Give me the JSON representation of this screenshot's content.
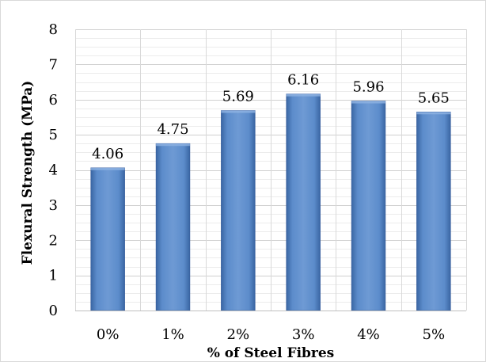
{
  "chart_data": {
    "type": "bar",
    "title": "",
    "xlabel": "% of Steel Fibres",
    "ylabel": "Flexural Strength (MPa)",
    "categories": [
      "0%",
      "1%",
      "2%",
      "3%",
      "4%",
      "5%"
    ],
    "values": [
      4.06,
      4.75,
      5.69,
      6.16,
      5.96,
      5.65
    ],
    "data_labels": [
      "4.06",
      "4.75",
      "5.69",
      "6.16",
      "5.96",
      "5.65"
    ],
    "ylim": [
      0,
      8
    ],
    "yticks": [
      "0",
      "1",
      "2",
      "3",
      "4",
      "5",
      "6",
      "7",
      "8"
    ],
    "grid": true,
    "legend": "none",
    "bar_color": "#4f81bd"
  }
}
